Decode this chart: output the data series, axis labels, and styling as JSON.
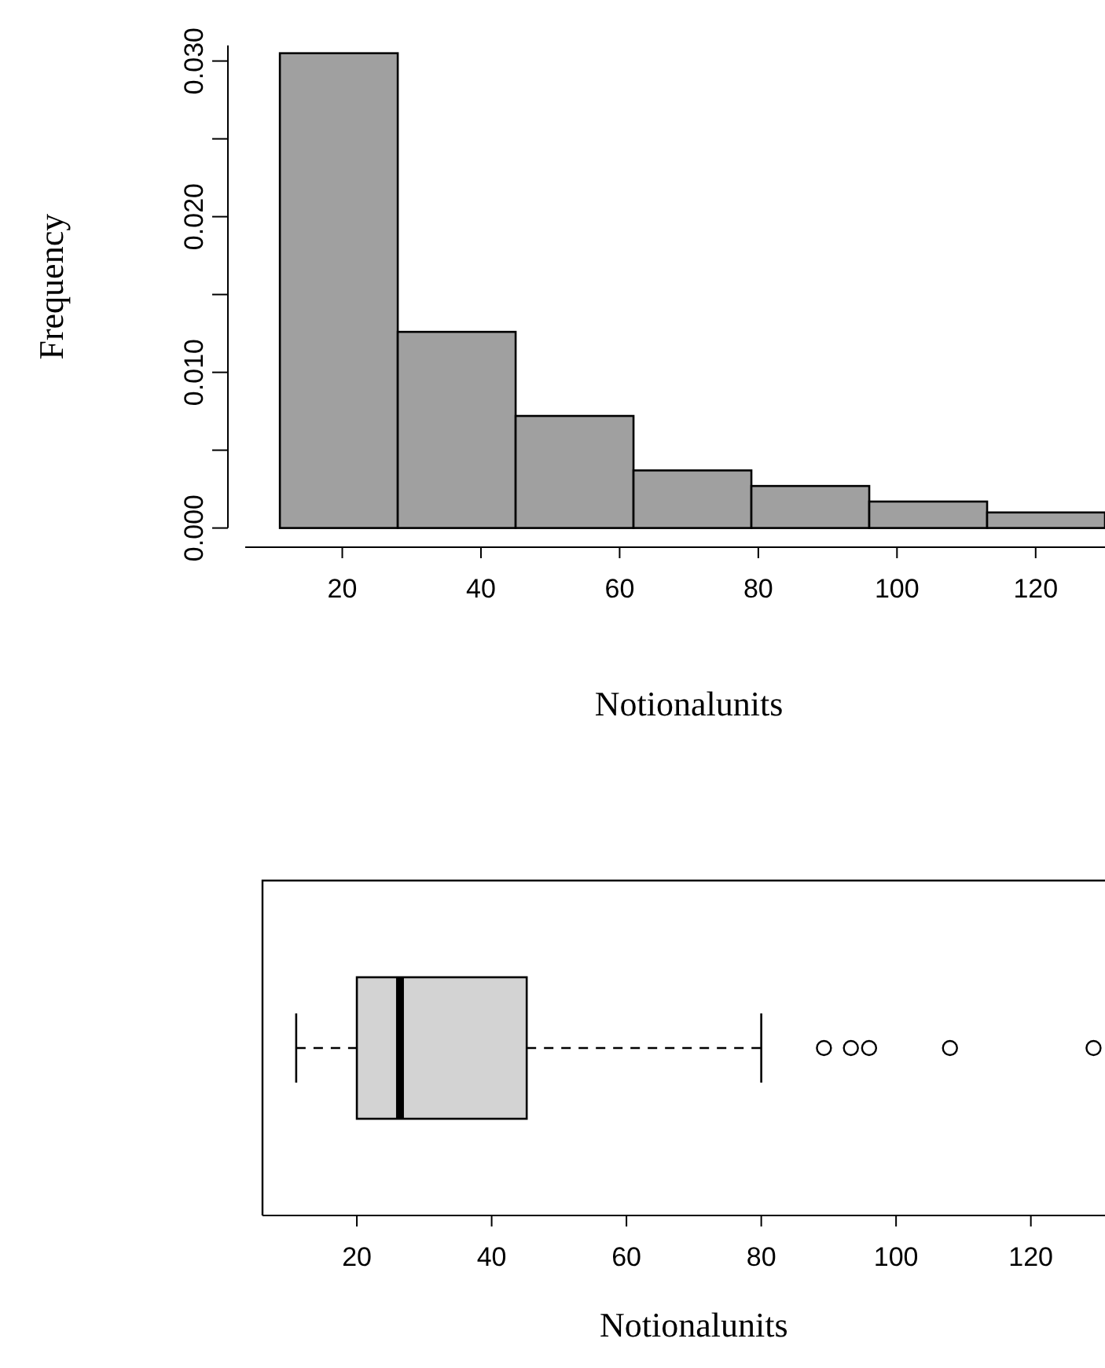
{
  "chart_data": [
    {
      "type": "histogram",
      "xlabel": "Notionalunits",
      "ylabel": "Frequency",
      "color": "#a0a0a0",
      "bins": [
        11,
        28,
        45,
        62,
        79,
        96,
        113,
        130
      ],
      "values": [
        0.0305,
        0.0126,
        0.0072,
        0.0037,
        0.0027,
        0.0017,
        0.001
      ],
      "xlim": [
        6,
        130
      ],
      "xticks": [
        20,
        40,
        60,
        80,
        100,
        120
      ],
      "ylim": [
        0,
        0.031
      ],
      "yticks": [
        {
          "value": 0,
          "label": "0.000"
        },
        {
          "value": 0.005,
          "label": null
        },
        {
          "value": 0.01,
          "label": "0.010"
        },
        {
          "value": 0.015,
          "label": null
        },
        {
          "value": 0.02,
          "label": "0.020"
        },
        {
          "value": 0.025,
          "label": null
        },
        {
          "value": 0.03,
          "label": "0.030"
        }
      ]
    },
    {
      "type": "box",
      "orientation": "horizontal",
      "xlabel": "Notionalunits",
      "color": "#d3d3d3",
      "categories": [
        null
      ],
      "boxes": [
        {
          "low": 11,
          "q1": 20,
          "median": 26.4,
          "q3": 45.2,
          "high": 80,
          "outliers": [
            89.3,
            93.3,
            96,
            108,
            129.3
          ]
        }
      ],
      "xlim": [
        6,
        131
      ],
      "xticks": [
        20,
        40,
        60,
        80,
        100,
        120
      ]
    }
  ]
}
